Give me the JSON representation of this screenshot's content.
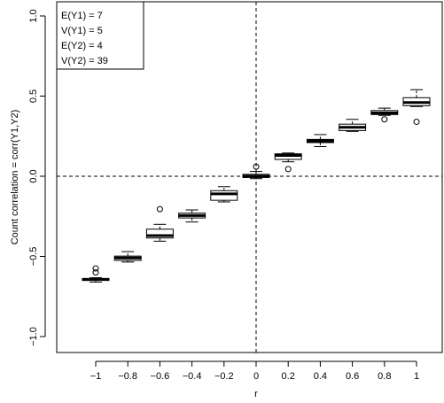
{
  "chart_data": {
    "type": "boxplot",
    "xlabel": "r",
    "ylabel": "Count correlation = corr(Y1,Y2)",
    "ylim": [
      -1.0,
      1.0
    ],
    "yticks": [
      -1.0,
      -0.5,
      0.0,
      0.5,
      1.0
    ],
    "ytick_labels": [
      "−1.0",
      "−0.5",
      "0.0",
      "0.5",
      "1.0"
    ],
    "categories": [
      "−1",
      "−0.8",
      "−0.6",
      "−0.4",
      "−0.2",
      "0",
      "0.2",
      "0.4",
      "0.6",
      "0.8",
      "1"
    ],
    "reference_lines": {
      "x": "0",
      "y": 0.0
    },
    "legend_position": "top-left",
    "legend": [
      "E(Y1) = 7",
      "V(Y1) = 5",
      "E(Y2) = 4",
      "V(Y2) = 39"
    ],
    "boxes": [
      {
        "whisker_low": -0.66,
        "q1": -0.65,
        "median": -0.643,
        "q3": -0.638,
        "whisker_high": -0.633,
        "outliers": [
          -0.6,
          -0.575
        ]
      },
      {
        "whisker_low": -0.535,
        "q1": -0.525,
        "median": -0.51,
        "q3": -0.498,
        "whisker_high": -0.47,
        "outliers": []
      },
      {
        "whisker_low": -0.405,
        "q1": -0.385,
        "median": -0.37,
        "q3": -0.33,
        "whisker_high": -0.3,
        "outliers": [
          -0.205
        ]
      },
      {
        "whisker_low": -0.285,
        "q1": -0.26,
        "median": -0.245,
        "q3": -0.23,
        "whisker_high": -0.21,
        "outliers": []
      },
      {
        "whisker_low": -0.16,
        "q1": -0.15,
        "median": -0.11,
        "q3": -0.09,
        "whisker_high": -0.065,
        "outliers": []
      },
      {
        "whisker_low": -0.015,
        "q1": -0.008,
        "median": 0.0,
        "q3": 0.012,
        "whisker_high": 0.03,
        "outliers": [
          0.06
        ]
      },
      {
        "whisker_low": 0.09,
        "q1": 0.105,
        "median": 0.13,
        "q3": 0.14,
        "whisker_high": 0.145,
        "outliers": [
          0.045
        ]
      },
      {
        "whisker_low": 0.185,
        "q1": 0.21,
        "median": 0.22,
        "q3": 0.23,
        "whisker_high": 0.26,
        "outliers": []
      },
      {
        "whisker_low": 0.28,
        "q1": 0.285,
        "median": 0.305,
        "q3": 0.325,
        "whisker_high": 0.355,
        "outliers": []
      },
      {
        "whisker_low": 0.38,
        "q1": 0.385,
        "median": 0.395,
        "q3": 0.41,
        "whisker_high": 0.425,
        "outliers": [
          0.355
        ]
      },
      {
        "whisker_low": 0.435,
        "q1": 0.44,
        "median": 0.46,
        "q3": 0.49,
        "whisker_high": 0.54,
        "outliers": [
          0.34
        ]
      }
    ]
  }
}
